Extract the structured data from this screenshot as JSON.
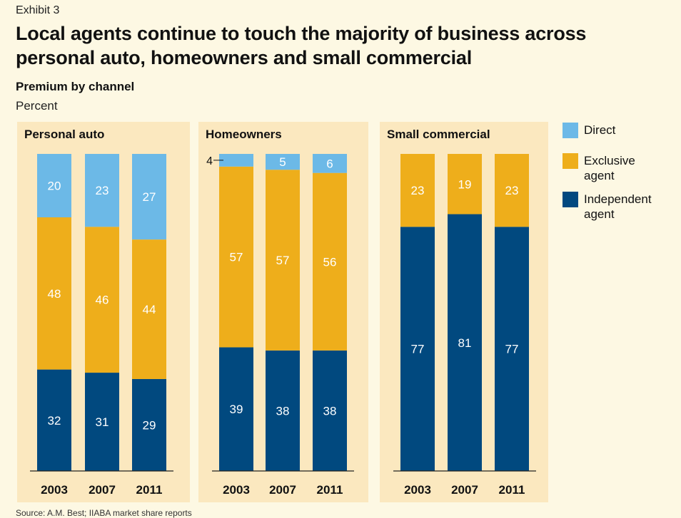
{
  "header": {
    "exhibit": "Exhibit 3",
    "title": "Local agents continue to touch the majority of business across personal auto, homeowners and small commercial",
    "subtitle": "Premium by channel",
    "unit": "Percent"
  },
  "source": "Source: A.M. Best; IIABA market share reports",
  "colors": {
    "background": "#fdf8e3",
    "panel": "#fbe8bf",
    "direct": "#6cb9e7",
    "exclusive": "#eeae1b",
    "independent": "#01497f"
  },
  "legend": [
    {
      "key": "direct",
      "label": "Direct"
    },
    {
      "key": "exclusive",
      "label": "Exclusive agent"
    },
    {
      "key": "independent",
      "label": "Independent agent"
    }
  ],
  "chart_data": [
    {
      "type": "bar",
      "stacked": true,
      "title": "Personal auto",
      "categories": [
        "2003",
        "2007",
        "2011"
      ],
      "series": [
        {
          "name": "Independent agent",
          "key": "independent",
          "values": [
            32,
            31,
            29
          ]
        },
        {
          "name": "Exclusive agent",
          "key": "exclusive",
          "values": [
            48,
            46,
            44
          ]
        },
        {
          "name": "Direct",
          "key": "direct",
          "values": [
            20,
            23,
            27
          ]
        }
      ],
      "ylim": [
        0,
        100
      ]
    },
    {
      "type": "bar",
      "stacked": true,
      "title": "Homeowners",
      "categories": [
        "2003",
        "2007",
        "2011"
      ],
      "series": [
        {
          "name": "Independent agent",
          "key": "independent",
          "values": [
            39,
            38,
            38
          ]
        },
        {
          "name": "Exclusive agent",
          "key": "exclusive",
          "values": [
            57,
            57,
            56
          ]
        },
        {
          "name": "Direct",
          "key": "direct",
          "values": [
            4,
            5,
            6
          ]
        }
      ],
      "ylim": [
        0,
        100
      ]
    },
    {
      "type": "bar",
      "stacked": true,
      "title": "Small commercial",
      "categories": [
        "2003",
        "2007",
        "2011"
      ],
      "series": [
        {
          "name": "Independent agent",
          "key": "independent",
          "values": [
            77,
            81,
            77
          ]
        },
        {
          "name": "Exclusive agent",
          "key": "exclusive",
          "values": [
            23,
            19,
            23
          ]
        },
        {
          "name": "Direct",
          "key": "direct",
          "values": [
            0,
            0,
            0
          ]
        }
      ],
      "ylim": [
        0,
        100
      ]
    }
  ]
}
